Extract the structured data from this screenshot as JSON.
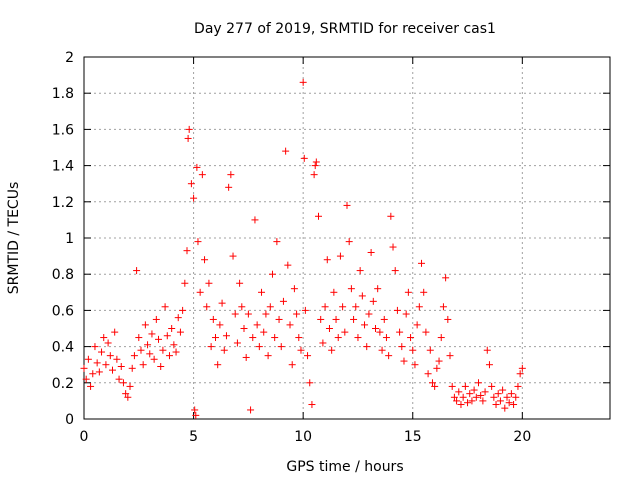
{
  "chart_data": {
    "type": "scatter",
    "title": "Day 277 of 2019, SRMTID for receiver cas1",
    "xlabel": "GPS time / hours",
    "ylabel": "SRMTID / TECUs",
    "xlim": [
      0,
      24
    ],
    "ylim": [
      0,
      2
    ],
    "x_ticks": [
      0,
      5,
      10,
      15,
      20
    ],
    "x_tick_labels": [
      "0",
      "5",
      "10",
      "15",
      "20"
    ],
    "y_ticks": [
      0,
      0.2,
      0.4,
      0.6,
      0.8,
      1,
      1.2,
      1.4,
      1.6,
      1.8,
      2
    ],
    "y_tick_labels": [
      "0",
      "0.2",
      "0.4",
      "0.6",
      "0.8",
      "1",
      "1.2",
      "1.4",
      "1.6",
      "1.8",
      "2"
    ],
    "grid": true,
    "marker": "+",
    "marker_color": "#ff0000",
    "series": [
      {
        "name": "cas1",
        "points": [
          [
            0.0,
            0.28
          ],
          [
            0.1,
            0.22
          ],
          [
            0.2,
            0.33
          ],
          [
            0.3,
            0.18
          ],
          [
            0.4,
            0.25
          ],
          [
            0.5,
            0.4
          ],
          [
            0.6,
            0.31
          ],
          [
            0.7,
            0.26
          ],
          [
            0.8,
            0.37
          ],
          [
            0.9,
            0.45
          ],
          [
            1.0,
            0.3
          ],
          [
            1.1,
            0.42
          ],
          [
            1.2,
            0.35
          ],
          [
            1.3,
            0.27
          ],
          [
            1.4,
            0.48
          ],
          [
            1.5,
            0.33
          ],
          [
            1.6,
            0.22
          ],
          [
            1.7,
            0.29
          ],
          [
            1.8,
            0.2
          ],
          [
            1.9,
            0.14
          ],
          [
            2.0,
            0.12
          ],
          [
            2.1,
            0.18
          ],
          [
            2.2,
            0.28
          ],
          [
            2.3,
            0.35
          ],
          [
            2.4,
            0.82
          ],
          [
            2.5,
            0.45
          ],
          [
            2.6,
            0.38
          ],
          [
            2.7,
            0.3
          ],
          [
            2.8,
            0.52
          ],
          [
            2.9,
            0.41
          ],
          [
            3.0,
            0.36
          ],
          [
            3.1,
            0.47
          ],
          [
            3.2,
            0.33
          ],
          [
            3.3,
            0.55
          ],
          [
            3.4,
            0.44
          ],
          [
            3.5,
            0.29
          ],
          [
            3.6,
            0.38
          ],
          [
            3.7,
            0.62
          ],
          [
            3.8,
            0.46
          ],
          [
            3.9,
            0.35
          ],
          [
            4.0,
            0.5
          ],
          [
            4.1,
            0.41
          ],
          [
            4.2,
            0.37
          ],
          [
            4.3,
            0.56
          ],
          [
            4.4,
            0.48
          ],
          [
            4.5,
            0.6
          ],
          [
            4.6,
            0.75
          ],
          [
            4.7,
            0.93
          ],
          [
            4.75,
            1.55
          ],
          [
            4.8,
            1.6
          ],
          [
            4.9,
            1.3
          ],
          [
            5.0,
            1.22
          ],
          [
            5.05,
            0.05
          ],
          [
            5.1,
            0.02
          ],
          [
            5.15,
            1.39
          ],
          [
            5.2,
            0.98
          ],
          [
            5.3,
            0.7
          ],
          [
            5.4,
            1.35
          ],
          [
            5.5,
            0.88
          ],
          [
            5.6,
            0.62
          ],
          [
            5.7,
            0.75
          ],
          [
            5.8,
            0.4
          ],
          [
            5.9,
            0.55
          ],
          [
            6.0,
            0.45
          ],
          [
            6.1,
            0.3
          ],
          [
            6.2,
            0.52
          ],
          [
            6.3,
            0.64
          ],
          [
            6.4,
            0.38
          ],
          [
            6.5,
            0.46
          ],
          [
            6.6,
            1.28
          ],
          [
            6.7,
            1.35
          ],
          [
            6.8,
            0.9
          ],
          [
            6.9,
            0.58
          ],
          [
            7.0,
            0.42
          ],
          [
            7.1,
            0.75
          ],
          [
            7.2,
            0.62
          ],
          [
            7.3,
            0.5
          ],
          [
            7.4,
            0.34
          ],
          [
            7.5,
            0.58
          ],
          [
            7.6,
            0.05
          ],
          [
            7.7,
            0.45
          ],
          [
            7.8,
            1.1
          ],
          [
            7.9,
            0.52
          ],
          [
            8.0,
            0.4
          ],
          [
            8.1,
            0.7
          ],
          [
            8.2,
            0.48
          ],
          [
            8.3,
            0.58
          ],
          [
            8.4,
            0.35
          ],
          [
            8.5,
            0.62
          ],
          [
            8.6,
            0.8
          ],
          [
            8.7,
            0.45
          ],
          [
            8.8,
            0.98
          ],
          [
            8.9,
            0.55
          ],
          [
            9.0,
            0.4
          ],
          [
            9.1,
            0.65
          ],
          [
            9.2,
            1.48
          ],
          [
            9.3,
            0.85
          ],
          [
            9.4,
            0.52
          ],
          [
            9.5,
            0.3
          ],
          [
            9.6,
            0.72
          ],
          [
            9.7,
            0.58
          ],
          [
            9.8,
            0.45
          ],
          [
            9.9,
            0.38
          ],
          [
            10.0,
            1.86
          ],
          [
            10.05,
            1.44
          ],
          [
            10.1,
            0.6
          ],
          [
            10.2,
            0.35
          ],
          [
            10.3,
            0.2
          ],
          [
            10.4,
            0.08
          ],
          [
            10.5,
            1.35
          ],
          [
            10.55,
            1.4
          ],
          [
            10.6,
            1.42
          ],
          [
            10.7,
            1.12
          ],
          [
            10.8,
            0.55
          ],
          [
            10.9,
            0.42
          ],
          [
            11.0,
            0.62
          ],
          [
            11.1,
            0.88
          ],
          [
            11.2,
            0.5
          ],
          [
            11.3,
            0.38
          ],
          [
            11.4,
            0.7
          ],
          [
            11.5,
            0.55
          ],
          [
            11.6,
            0.45
          ],
          [
            11.7,
            0.9
          ],
          [
            11.8,
            0.62
          ],
          [
            11.9,
            0.48
          ],
          [
            12.0,
            1.18
          ],
          [
            12.1,
            0.98
          ],
          [
            12.2,
            0.72
          ],
          [
            12.3,
            0.55
          ],
          [
            12.4,
            0.62
          ],
          [
            12.5,
            0.45
          ],
          [
            12.6,
            0.82
          ],
          [
            12.7,
            0.68
          ],
          [
            12.8,
            0.52
          ],
          [
            12.9,
            0.4
          ],
          [
            13.0,
            0.58
          ],
          [
            13.1,
            0.92
          ],
          [
            13.2,
            0.65
          ],
          [
            13.3,
            0.5
          ],
          [
            13.4,
            0.72
          ],
          [
            13.5,
            0.48
          ],
          [
            13.6,
            0.38
          ],
          [
            13.7,
            0.55
          ],
          [
            13.8,
            0.45
          ],
          [
            13.9,
            0.35
          ],
          [
            14.0,
            1.12
          ],
          [
            14.1,
            0.95
          ],
          [
            14.2,
            0.82
          ],
          [
            14.3,
            0.6
          ],
          [
            14.4,
            0.48
          ],
          [
            14.5,
            0.4
          ],
          [
            14.6,
            0.32
          ],
          [
            14.7,
            0.58
          ],
          [
            14.8,
            0.7
          ],
          [
            14.9,
            0.45
          ],
          [
            15.0,
            0.38
          ],
          [
            15.1,
            0.3
          ],
          [
            15.2,
            0.52
          ],
          [
            15.3,
            0.62
          ],
          [
            15.4,
            0.86
          ],
          [
            15.5,
            0.7
          ],
          [
            15.6,
            0.48
          ],
          [
            15.7,
            0.25
          ],
          [
            15.8,
            0.38
          ],
          [
            15.9,
            0.2
          ],
          [
            16.0,
            0.18
          ],
          [
            16.1,
            0.28
          ],
          [
            16.2,
            0.32
          ],
          [
            16.3,
            0.45
          ],
          [
            16.4,
            0.62
          ],
          [
            16.5,
            0.78
          ],
          [
            16.6,
            0.55
          ],
          [
            16.7,
            0.35
          ],
          [
            16.8,
            0.18
          ],
          [
            16.9,
            0.12
          ],
          [
            17.0,
            0.1
          ],
          [
            17.1,
            0.15
          ],
          [
            17.2,
            0.08
          ],
          [
            17.3,
            0.12
          ],
          [
            17.4,
            0.18
          ],
          [
            17.5,
            0.09
          ],
          [
            17.6,
            0.14
          ],
          [
            17.7,
            0.1
          ],
          [
            17.8,
            0.16
          ],
          [
            17.9,
            0.12
          ],
          [
            18.0,
            0.2
          ],
          [
            18.1,
            0.13
          ],
          [
            18.2,
            0.1
          ],
          [
            18.3,
            0.15
          ],
          [
            18.4,
            0.38
          ],
          [
            18.5,
            0.3
          ],
          [
            18.6,
            0.18
          ],
          [
            18.7,
            0.12
          ],
          [
            18.8,
            0.08
          ],
          [
            18.9,
            0.14
          ],
          [
            19.0,
            0.1
          ],
          [
            19.1,
            0.16
          ],
          [
            19.2,
            0.06
          ],
          [
            19.3,
            0.12
          ],
          [
            19.4,
            0.09
          ],
          [
            19.5,
            0.14
          ],
          [
            19.6,
            0.08
          ],
          [
            19.7,
            0.12
          ],
          [
            19.8,
            0.18
          ],
          [
            19.9,
            0.25
          ],
          [
            20.0,
            0.28
          ]
        ]
      }
    ]
  }
}
